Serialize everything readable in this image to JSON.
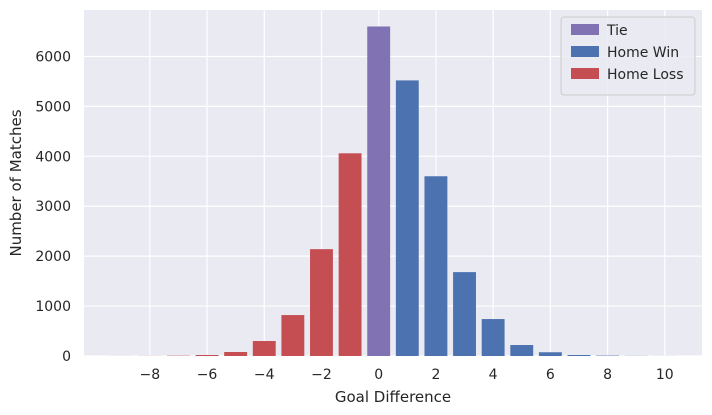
{
  "chart_data": {
    "type": "bar",
    "title": "",
    "xlabel": "Goal Difference",
    "ylabel": "Number of Matches",
    "xlim": [
      -10.3,
      11.3
    ],
    "ylim": [
      0,
      6930
    ],
    "xticks": [
      -8,
      -6,
      -4,
      -2,
      0,
      2,
      4,
      6,
      8,
      10
    ],
    "xtick_labels": [
      "−8",
      "−6",
      "−4",
      "−2",
      "0",
      "2",
      "4",
      "6",
      "8",
      "10"
    ],
    "yticks": [
      0,
      1000,
      2000,
      3000,
      4000,
      5000,
      6000
    ],
    "ytick_labels": [
      "0",
      "1000",
      "2000",
      "3000",
      "4000",
      "5000",
      "6000"
    ],
    "grid": true,
    "legend_position": "top-right",
    "series": [
      {
        "name": "Tie",
        "color": "#8172b3",
        "x": [
          0
        ],
        "values": [
          6600
        ]
      },
      {
        "name": "Home Win",
        "color": "#4c72b0",
        "x": [
          1,
          2,
          3,
          4,
          5,
          6,
          7,
          8,
          9,
          10
        ],
        "values": [
          5520,
          3600,
          1680,
          740,
          220,
          75,
          20,
          8,
          3,
          1
        ]
      },
      {
        "name": "Home Loss",
        "color": "#c44e52",
        "x": [
          -1,
          -2,
          -3,
          -4,
          -5,
          -6,
          -7,
          -8,
          -9
        ],
        "values": [
          4060,
          2140,
          820,
          300,
          80,
          20,
          6,
          2,
          1
        ]
      }
    ]
  }
}
